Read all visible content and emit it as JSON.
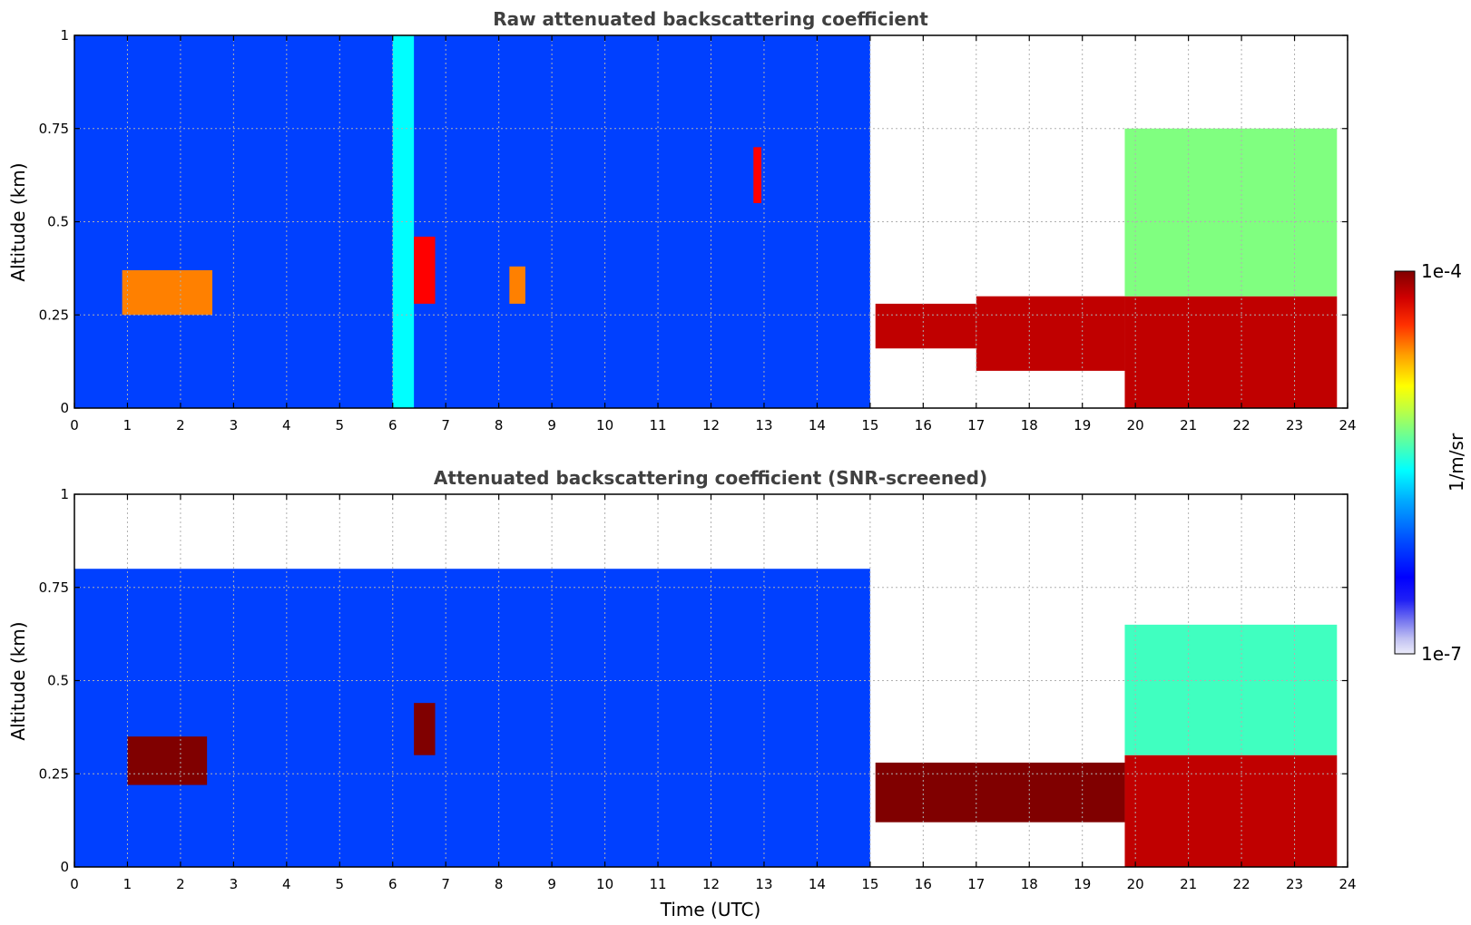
{
  "chart_data": [
    {
      "type": "heatmap",
      "title": "Raw attenuated backscattering coefficient",
      "xlabel": "",
      "ylabel": "Altitude (km)",
      "xlim": [
        0,
        24
      ],
      "ylim": [
        0,
        1
      ],
      "x_ticks": [
        "0",
        "1",
        "2",
        "3",
        "4",
        "5",
        "6",
        "7",
        "8",
        "9",
        "10",
        "11",
        "12",
        "13",
        "14",
        "15",
        "16",
        "17",
        "18",
        "19",
        "20",
        "21",
        "22",
        "23",
        "24"
      ],
      "y_ticks": [
        "0",
        "0.25",
        "0.5",
        "0.75",
        "1"
      ],
      "grid": true,
      "colorscale": "jet-log",
      "features": [
        {
          "t0": 0.0,
          "t1": 15.0,
          "z0": 0.0,
          "z1": 1.0,
          "level": 0.25,
          "desc": "background signal"
        },
        {
          "t0": 0.9,
          "t1": 2.6,
          "z0": 0.25,
          "z1": 0.37,
          "level": 0.78
        },
        {
          "t0": 6.0,
          "t1": 6.4,
          "z0": 0.0,
          "z1": 1.0,
          "level": 0.45
        },
        {
          "t0": 6.4,
          "t1": 6.8,
          "z0": 0.28,
          "z1": 0.46,
          "level": 0.9
        },
        {
          "t0": 8.2,
          "t1": 8.5,
          "z0": 0.28,
          "z1": 0.38,
          "level": 0.8
        },
        {
          "t0": 12.8,
          "t1": 12.95,
          "z0": 0.55,
          "z1": 0.7,
          "level": 0.9
        },
        {
          "t0": 15.1,
          "t1": 17.0,
          "z0": 0.16,
          "z1": 0.28,
          "level": 0.95
        },
        {
          "t0": 17.0,
          "t1": 19.8,
          "z0": 0.1,
          "z1": 0.3,
          "level": 0.97
        },
        {
          "t0": 19.8,
          "t1": 23.8,
          "z0": 0.0,
          "z1": 0.3,
          "level": 0.95
        },
        {
          "t0": 19.8,
          "t1": 23.8,
          "z0": 0.3,
          "z1": 0.75,
          "level": 0.55
        }
      ]
    },
    {
      "type": "heatmap",
      "title": "Attenuated backscattering coefficient (SNR-screened)",
      "xlabel": "Time (UTC)",
      "ylabel": "Altitude (km)",
      "xlim": [
        0,
        24
      ],
      "ylim": [
        0,
        1
      ],
      "x_ticks": [
        "0",
        "1",
        "2",
        "3",
        "4",
        "5",
        "6",
        "7",
        "8",
        "9",
        "10",
        "11",
        "12",
        "13",
        "14",
        "15",
        "16",
        "17",
        "18",
        "19",
        "20",
        "21",
        "22",
        "23",
        "24"
      ],
      "y_ticks": [
        "0",
        "0.25",
        "0.5",
        "0.75",
        "1"
      ],
      "grid": true,
      "colorscale": "jet-log",
      "features": [
        {
          "t0": 0.0,
          "t1": 15.0,
          "z0": 0.0,
          "z1": 0.8,
          "level": 0.25,
          "desc": "background signal"
        },
        {
          "t0": 1.0,
          "t1": 2.5,
          "z0": 0.22,
          "z1": 0.35,
          "level": 1.0
        },
        {
          "t0": 6.4,
          "t1": 6.8,
          "z0": 0.3,
          "z1": 0.44,
          "level": 1.0
        },
        {
          "t0": 15.1,
          "t1": 19.8,
          "z0": 0.12,
          "z1": 0.28,
          "level": 1.0
        },
        {
          "t0": 19.8,
          "t1": 23.8,
          "z0": 0.0,
          "z1": 0.3,
          "level": 0.95
        },
        {
          "t0": 19.8,
          "t1": 23.8,
          "z0": 0.3,
          "z1": 0.65,
          "level": 0.5
        }
      ]
    }
  ],
  "colorbar": {
    "label": "1/m/sr",
    "max_label": "1e-4",
    "min_label": "1e-7",
    "colors": [
      "#e8e8f8",
      "#b8b8f0",
      "#8080f0",
      "#4040f0",
      "#0000ff",
      "#0040ff",
      "#0080ff",
      "#00c0ff",
      "#00ffff",
      "#40ffc0",
      "#80ff80",
      "#c0ff40",
      "#ffff00",
      "#ffc000",
      "#ff8000",
      "#ff4000",
      "#ff0000",
      "#c00000",
      "#800000"
    ]
  }
}
